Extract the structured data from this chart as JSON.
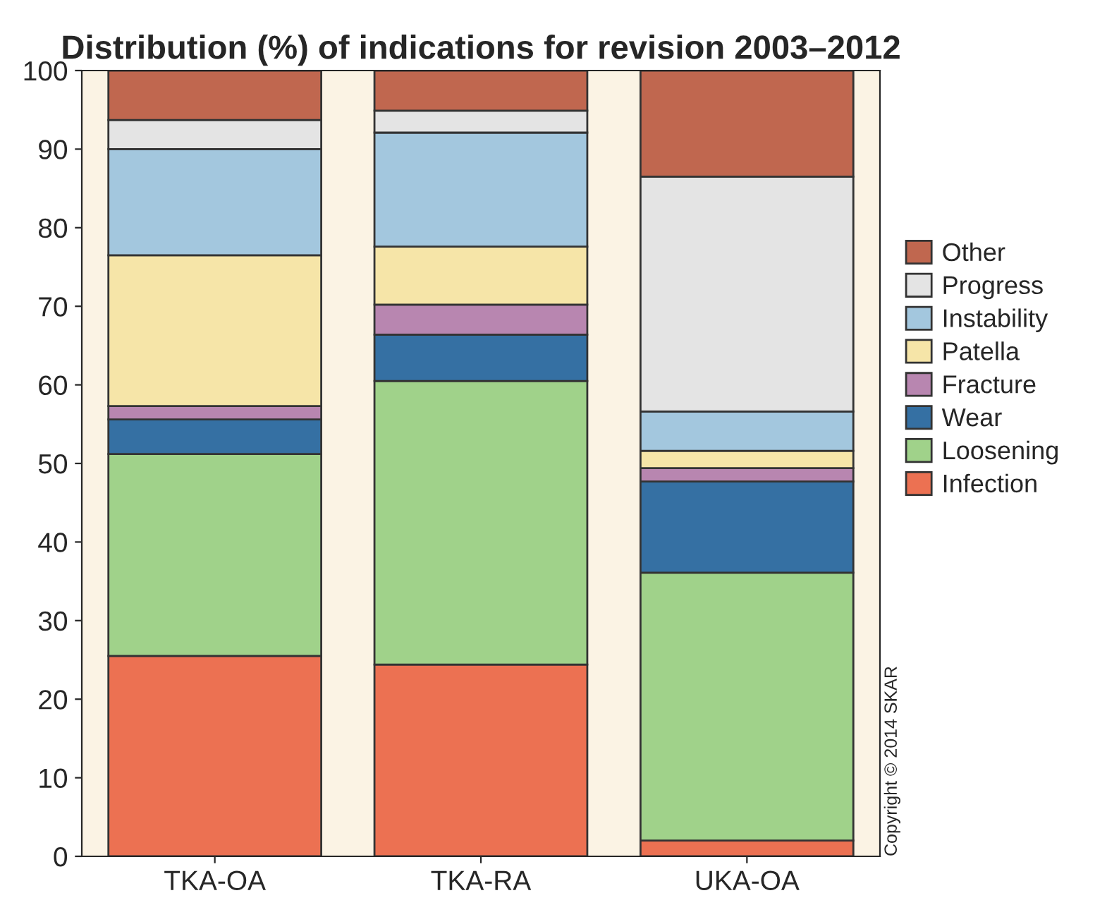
{
  "chart_data": {
    "type": "bar",
    "stacked": true,
    "title": "Distribution (%) of indications for revision 2003–2012",
    "categories": [
      "TKA-OA",
      "TKA-RA",
      "UKA-OA"
    ],
    "series": [
      {
        "name": "Infection",
        "color": "#ec7152",
        "values": [
          25.5,
          24.4,
          2.0
        ]
      },
      {
        "name": "Loosening",
        "color": "#a0d28a",
        "values": [
          25.7,
          36.1,
          34.1
        ]
      },
      {
        "name": "Wear",
        "color": "#3570a3",
        "values": [
          4.4,
          5.9,
          11.6
        ]
      },
      {
        "name": "Fracture",
        "color": "#b886b0",
        "values": [
          1.7,
          3.8,
          1.7
        ]
      },
      {
        "name": "Patella",
        "color": "#f6e5a8",
        "values": [
          19.2,
          7.4,
          2.2
        ]
      },
      {
        "name": "Instability",
        "color": "#a3c7de",
        "values": [
          13.5,
          14.5,
          5.0
        ]
      },
      {
        "name": "Progress",
        "color": "#e4e4e4",
        "values": [
          3.7,
          2.8,
          29.9
        ]
      },
      {
        "name": "Other",
        "color": "#c0674f",
        "values": [
          6.3,
          5.1,
          13.5
        ]
      }
    ],
    "ylim": [
      0,
      100
    ],
    "yticks": [
      0,
      10,
      20,
      30,
      40,
      50,
      60,
      70,
      80,
      90,
      100
    ],
    "legend": "right",
    "grid": false,
    "annotations": [
      "Copyright © 2014 SKAR"
    ]
  }
}
